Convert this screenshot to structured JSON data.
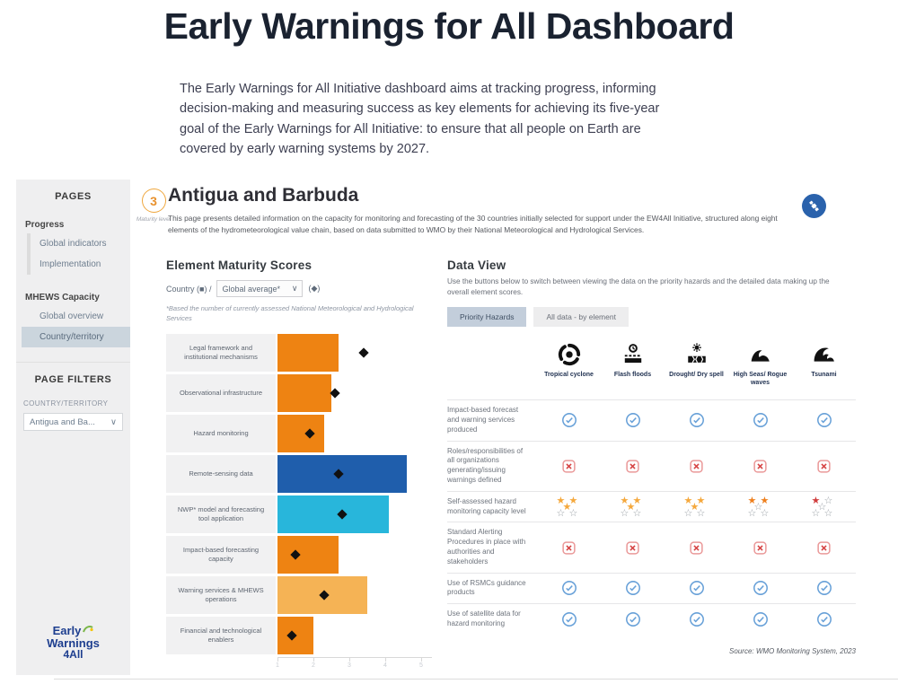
{
  "page": {
    "title": "Early Warnings for All Dashboard",
    "intro": "The Early Warnings for All Initiative dashboard aims at tracking progress, informing decision-making and measuring success as key elements for achieving its five-year goal of the Early Warnings for All Initiative: to ensure that all people on Earth are covered by early warning systems by 2027."
  },
  "sidebar": {
    "pages_title": "PAGES",
    "groups": [
      {
        "label": "Progress",
        "items": [
          {
            "label": "Global indicators",
            "selected": false
          },
          {
            "label": "Implementation",
            "selected": false
          }
        ]
      },
      {
        "label": "MHEWS Capacity",
        "items": [
          {
            "label": "Global overview",
            "selected": false
          },
          {
            "label": "Country/territory",
            "selected": true
          }
        ]
      }
    ],
    "filters_title": "PAGE FILTERS",
    "filter_label": "COUNTRY/TERRITORY",
    "filter_value": "Antigua and Ba...",
    "filter_chevron": "∨",
    "logo": {
      "line1": "Early",
      "line2": "Warnings",
      "line3": "4All"
    }
  },
  "header": {
    "maturity_value": "3",
    "maturity_label": "Maturity level",
    "country_title": "Antigua and Barbuda",
    "description": "This page presents detailed information on the capacity for monitoring and forecasting of the 30 countries initially selected for support under the EW4All Initiative, structured along eight elements of the hydrometeorological value chain, based on data submitted to WMO by their National Meteorological and Hydrological Services.",
    "satellite_icon": "satellite-icon"
  },
  "maturity_chart": {
    "title": "Element Maturity Scores",
    "legend_country": "Country (■) /",
    "selector_value": "Global average*",
    "selector_chevron": "∨",
    "legend_average": "(◆)",
    "footnote": "*Based the number of currently assessed National Meteorological and Hydrological Services"
  },
  "chart_data": {
    "type": "bar",
    "orientation": "horizontal",
    "title": "Element Maturity Scores",
    "categories": [
      "Legal framework and institutional mechanisms",
      "Observational infrastructure",
      "Hazard monitoring",
      "Remote-sensing data",
      "NWP* model and forecasting tool application",
      "Impact-based forecasting capacity",
      "Warning services & MHEWS operations",
      "Financial and technological enablers"
    ],
    "series": [
      {
        "name": "Country (Antigua and Barbuda)",
        "style": "bar",
        "values": [
          2.7,
          2.5,
          2.3,
          4.6,
          4.1,
          2.7,
          3.5,
          2.0
        ]
      },
      {
        "name": "Global average",
        "style": "diamond-marker",
        "values": [
          3.4,
          2.6,
          1.9,
          2.7,
          2.8,
          1.5,
          2.3,
          1.4
        ]
      }
    ],
    "bar_colors": [
      "#EE8312",
      "#EE8312",
      "#EE8312",
      "#1F5EAC",
      "#28B6DB",
      "#EE8312",
      "#F5B355",
      "#EE8312"
    ],
    "xlim": [
      1,
      5
    ],
    "x_ticks": [
      1,
      2,
      3,
      4,
      5
    ],
    "grid": false,
    "legend_position": "top"
  },
  "data_view": {
    "title": "Data View",
    "description": "Use the buttons below to switch between viewing the data on the priority hazards and the detailed data making up the overall element scores.",
    "buttons": [
      {
        "label": "Priority Hazards",
        "selected": true
      },
      {
        "label": "All data - by element",
        "selected": false
      }
    ],
    "hazards": [
      {
        "label": "Tropical cyclone",
        "icon": "cyclone-icon"
      },
      {
        "label": "Flash floods",
        "icon": "flood-icon"
      },
      {
        "label": "Drought/ Dry spell",
        "icon": "drought-icon"
      },
      {
        "label": "High Seas/ Rogue waves",
        "icon": "wave-icon"
      },
      {
        "label": "Tsunami",
        "icon": "tsunami-icon"
      }
    ],
    "rows": [
      {
        "label": "Impact-based forecast and warning services produced",
        "cells": [
          {
            "type": "check"
          },
          {
            "type": "check"
          },
          {
            "type": "check"
          },
          {
            "type": "check"
          },
          {
            "type": "check"
          }
        ]
      },
      {
        "label": "Roles/responsibilities of all organizations generating/issuing warnings defined",
        "cells": [
          {
            "type": "cross"
          },
          {
            "type": "cross"
          },
          {
            "type": "cross"
          },
          {
            "type": "cross"
          },
          {
            "type": "cross"
          }
        ]
      },
      {
        "label": "Self-assessed hazard monitoring capacity level",
        "cells": [
          {
            "type": "stars",
            "filled": 3,
            "color": "#F5A83C"
          },
          {
            "type": "stars",
            "filled": 3,
            "color": "#F5A83C"
          },
          {
            "type": "stars",
            "filled": 3,
            "color": "#F5A83C"
          },
          {
            "type": "stars",
            "filled": 2,
            "color": "#EE7F1D"
          },
          {
            "type": "stars",
            "filled": 1,
            "color": "#D03C3C"
          }
        ]
      },
      {
        "label": "Standard Alerting Procedures in place with authorities and stakeholders",
        "cells": [
          {
            "type": "cross"
          },
          {
            "type": "cross"
          },
          {
            "type": "cross"
          },
          {
            "type": "cross"
          },
          {
            "type": "cross"
          }
        ]
      },
      {
        "label": "Use of RSMCs guidance products",
        "cells": [
          {
            "type": "check"
          },
          {
            "type": "check"
          },
          {
            "type": "check"
          },
          {
            "type": "check"
          },
          {
            "type": "check"
          }
        ]
      },
      {
        "label": "Use of satellite data for hazard monitoring",
        "cells": [
          {
            "type": "check"
          },
          {
            "type": "check"
          },
          {
            "type": "check"
          },
          {
            "type": "check"
          },
          {
            "type": "check"
          }
        ]
      }
    ],
    "source": "Source: WMO Monitoring System, 2023"
  },
  "colors": {
    "orange": "#EE8312",
    "light_orange": "#F5B355",
    "dark_blue": "#1F5EAC",
    "cyan": "#28B6DB",
    "check_blue": "#67A0D8",
    "cross_red": "#EA9999",
    "cross_mark_red": "#D64545",
    "star_outline": "#9aa0a6",
    "selected_button_bg": "#C3CEDB",
    "selected_nav_bg": "#CBD5DD",
    "maturity_ring": "#EFA73E",
    "satellite_bg": "#2A62AC"
  }
}
